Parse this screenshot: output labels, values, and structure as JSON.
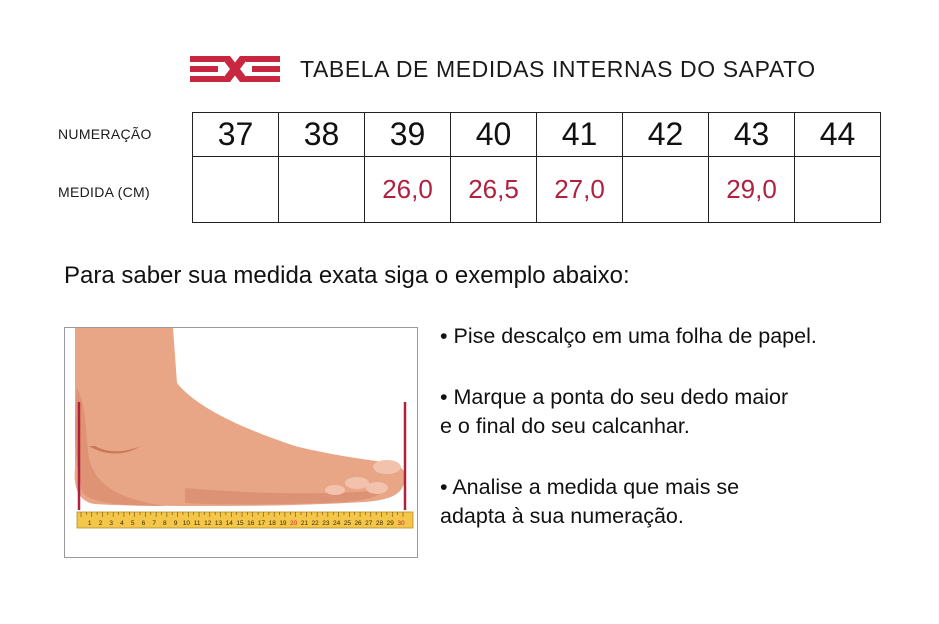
{
  "header": {
    "title": "TABELA DE MEDIDAS INTERNAS DO SAPATO",
    "logo_colors": {
      "primary": "#c8283f"
    }
  },
  "size_table": {
    "row_labels": {
      "numbering": "NUMERAÇÃO",
      "measure": "MEDIDA (CM)"
    },
    "sizes": [
      "37",
      "38",
      "39",
      "40",
      "41",
      "42",
      "43",
      "44"
    ],
    "measures": [
      "",
      "",
      "26,0",
      "26,5",
      "27,0",
      "",
      "29,0",
      ""
    ],
    "measure_color": "#b0213f"
  },
  "instruction": "Para saber sua medida exata siga o exemplo abaixo:",
  "illustration": {
    "ruler_numbers": [
      "1",
      "2",
      "3",
      "4",
      "5",
      "6",
      "7",
      "8",
      "9",
      "10",
      "11",
      "12",
      "13",
      "14",
      "15",
      "16",
      "17",
      "18",
      "19",
      "20",
      "21",
      "22",
      "23",
      "24",
      "25",
      "26",
      "27",
      "28",
      "29",
      "30"
    ],
    "ruler_highlight": [
      "20",
      "30"
    ],
    "marker_color": "#b0213f"
  },
  "steps": [
    {
      "line1": "• Pise descalço em uma folha de papel.",
      "line2": ""
    },
    {
      "line1": "• Marque a ponta do seu dedo maior",
      "line2": "e o final do seu calcanhar."
    },
    {
      "line1": "• Analise a medida que mais se",
      "line2": "adapta à sua numeração."
    }
  ]
}
